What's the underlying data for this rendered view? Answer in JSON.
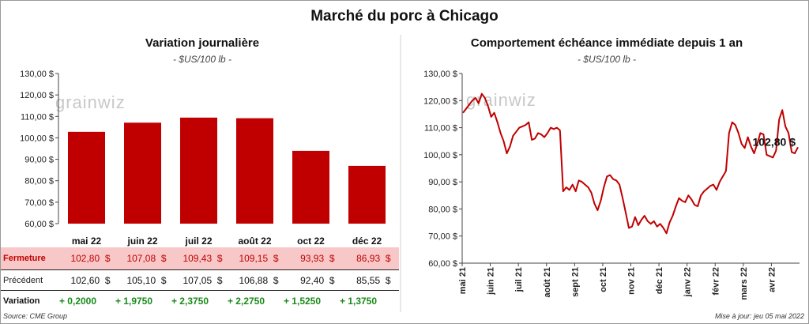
{
  "title": "Marché du porc à Chicago",
  "units": "- $US/100 lb -",
  "left": {
    "subtitle": "Variation  journalière"
  },
  "right": {
    "subtitle": "Comportement  échéance  immédiate  depuis  1 an",
    "last_value_label": "102,80 $"
  },
  "watermark": "grainwiz",
  "table": {
    "rows": [
      {
        "label": "Fermeture",
        "values": [
          "102,80  $",
          "107,08  $",
          "109,43  $",
          "109,15  $",
          "93,93  $",
          "86,93  $"
        ]
      },
      {
        "label": "Précédent",
        "values": [
          "102,60  $",
          "105,10  $",
          "107,05  $",
          "106,88  $",
          "92,40  $",
          "85,55  $"
        ]
      },
      {
        "label": "Variation",
        "values": [
          "+ 0,2000",
          "+ 1,9750",
          "+ 2,3750",
          "+ 2,2750",
          "+ 1,5250",
          "+ 1,3750"
        ]
      }
    ]
  },
  "footer": {
    "source": "Source: CME Group",
    "updated": "Mise à jour: jeu 05 mai 2022"
  },
  "colors": {
    "bar": "#c00000",
    "line": "#c00000",
    "highlight_row": "#f8c8c8",
    "positive": "#1a8a1a",
    "watermark": "#c8c8c8"
  },
  "chart_data": [
    {
      "type": "bar",
      "categories": [
        "mai 22",
        "juin 22",
        "juil 22",
        "août 22",
        "oct 22",
        "déc 22"
      ],
      "values": [
        102.8,
        107.08,
        109.43,
        109.15,
        93.93,
        86.93
      ],
      "ylim": [
        60,
        130
      ],
      "yticks": [
        60,
        70,
        80,
        90,
        100,
        110,
        120,
        130
      ],
      "ytick_labels": [
        "60,00 $",
        "70,00 $",
        "80,00 $",
        "90,00 $",
        "100,00 $",
        "110,00 $",
        "120,00 $",
        "130,00 $"
      ],
      "grid": false,
      "legend": "none"
    },
    {
      "type": "line",
      "x_labels": [
        "mai 21",
        "juin 21",
        "juil 21",
        "août 21",
        "sept 21",
        "oct 21",
        "nov 21",
        "déc 21",
        "janv 22",
        "févr 22",
        "mars 22",
        "avr 22"
      ],
      "ylim": [
        60,
        130
      ],
      "yticks": [
        60,
        70,
        80,
        90,
        100,
        110,
        120,
        130
      ],
      "ytick_labels": [
        "60,00 $",
        "70,00 $",
        "80,00 $",
        "90,00 $",
        "100,00 $",
        "110,00 $",
        "120,00 $",
        "130,00 $"
      ],
      "series": [
        {
          "values": [
            115.5,
            117,
            118.5,
            120,
            121,
            119,
            122.5,
            121,
            118,
            114,
            115.5,
            112,
            108,
            105,
            100.5,
            103,
            107,
            108.5,
            110,
            110.5,
            111,
            112,
            105.5,
            106,
            108,
            107.5,
            106.5,
            108,
            110,
            109.5,
            110,
            109,
            86.5,
            88,
            87,
            89,
            86.5,
            90.5,
            90,
            89,
            88,
            86,
            82,
            79.5,
            83,
            88,
            92,
            92.5,
            91,
            90.5,
            89,
            84,
            78.5,
            73,
            73.5,
            77,
            74,
            76,
            77.5,
            75.5,
            74.5,
            75.5,
            73.5,
            74.5,
            73,
            71,
            75,
            77.5,
            81,
            84,
            83,
            82.5,
            85,
            83.5,
            81.5,
            81,
            85,
            86.5,
            87.5,
            88.5,
            89,
            87,
            90,
            92,
            94,
            108,
            112,
            111,
            108,
            104,
            102.5,
            106.5,
            103,
            100.5,
            104,
            108,
            107.5,
            100,
            99.5,
            99,
            101.5,
            113,
            116.5,
            110.5,
            108,
            101,
            100.5,
            102.8
          ]
        }
      ],
      "grid": false,
      "legend": "none"
    }
  ]
}
